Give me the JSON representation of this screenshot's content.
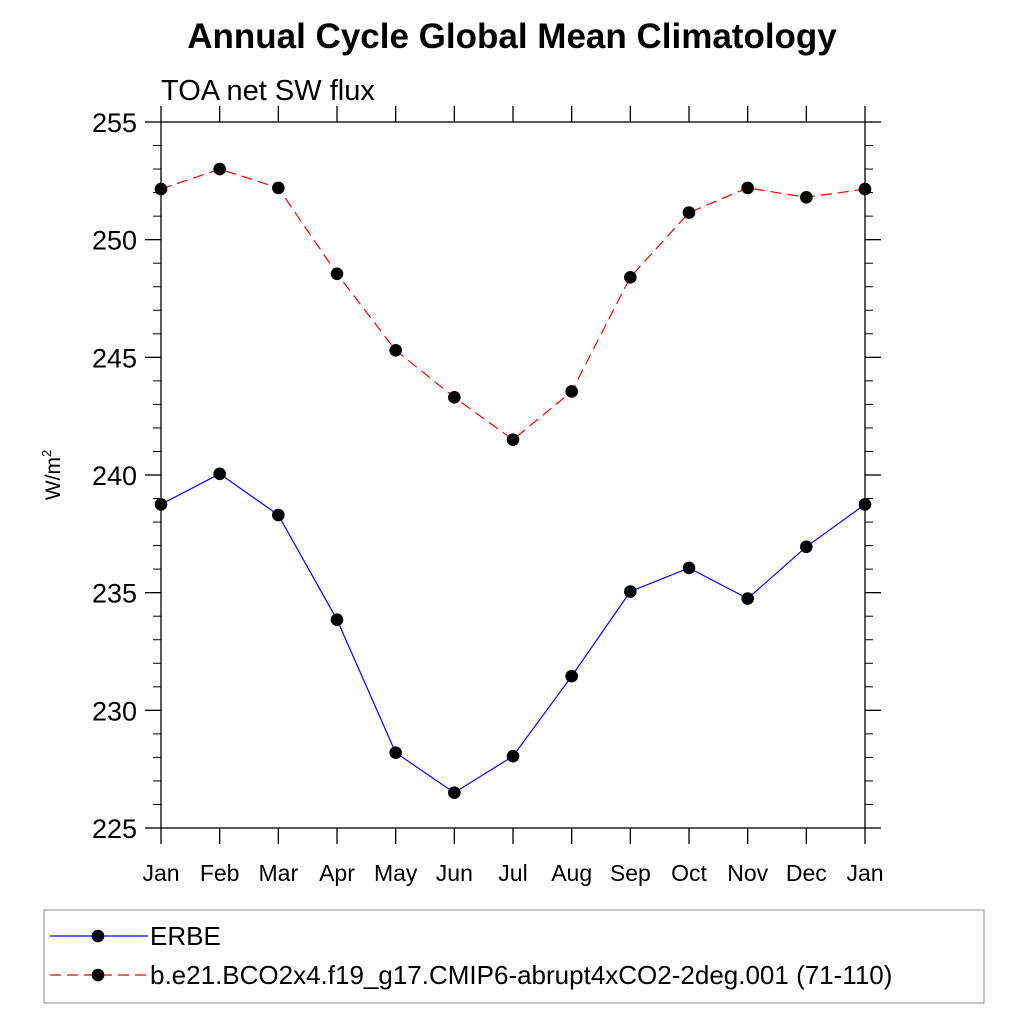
{
  "chart_data": {
    "type": "line",
    "title": "Annual Cycle Global Mean Climatology",
    "subtitle": "TOA net SW flux",
    "xlabel": "",
    "ylabel": "W/m",
    "ylabel_superscript": "2",
    "categories": [
      "Jan",
      "Feb",
      "Mar",
      "Apr",
      "May",
      "Jun",
      "Jul",
      "Aug",
      "Sep",
      "Oct",
      "Nov",
      "Dec",
      "Jan"
    ],
    "ylim": [
      225,
      255
    ],
    "yticks": [
      "255",
      "250",
      "245",
      "240",
      "235",
      "230",
      "225"
    ],
    "grid": false,
    "legend_placement": "bottom",
    "series": [
      {
        "name": "ERBE",
        "values": [
          238.75,
          240.05,
          238.3,
          233.85,
          228.2,
          226.5,
          228.05,
          231.45,
          235.05,
          236.05,
          234.75,
          236.95,
          238.75
        ],
        "color": "#0000ff",
        "line_style": "solid",
        "marker": "filled-circle"
      },
      {
        "name": "b.e21.BCO2x4.f19_g17.CMIP6-abrupt4xCO2-2deg.001 (71-110)",
        "values": [
          252.15,
          253.0,
          252.2,
          248.55,
          245.3,
          243.3,
          241.5,
          243.55,
          248.4,
          251.15,
          252.2,
          251.8,
          252.15
        ],
        "color": "#ff0000",
        "line_style": "dashed",
        "marker": "filled-circle"
      }
    ]
  }
}
